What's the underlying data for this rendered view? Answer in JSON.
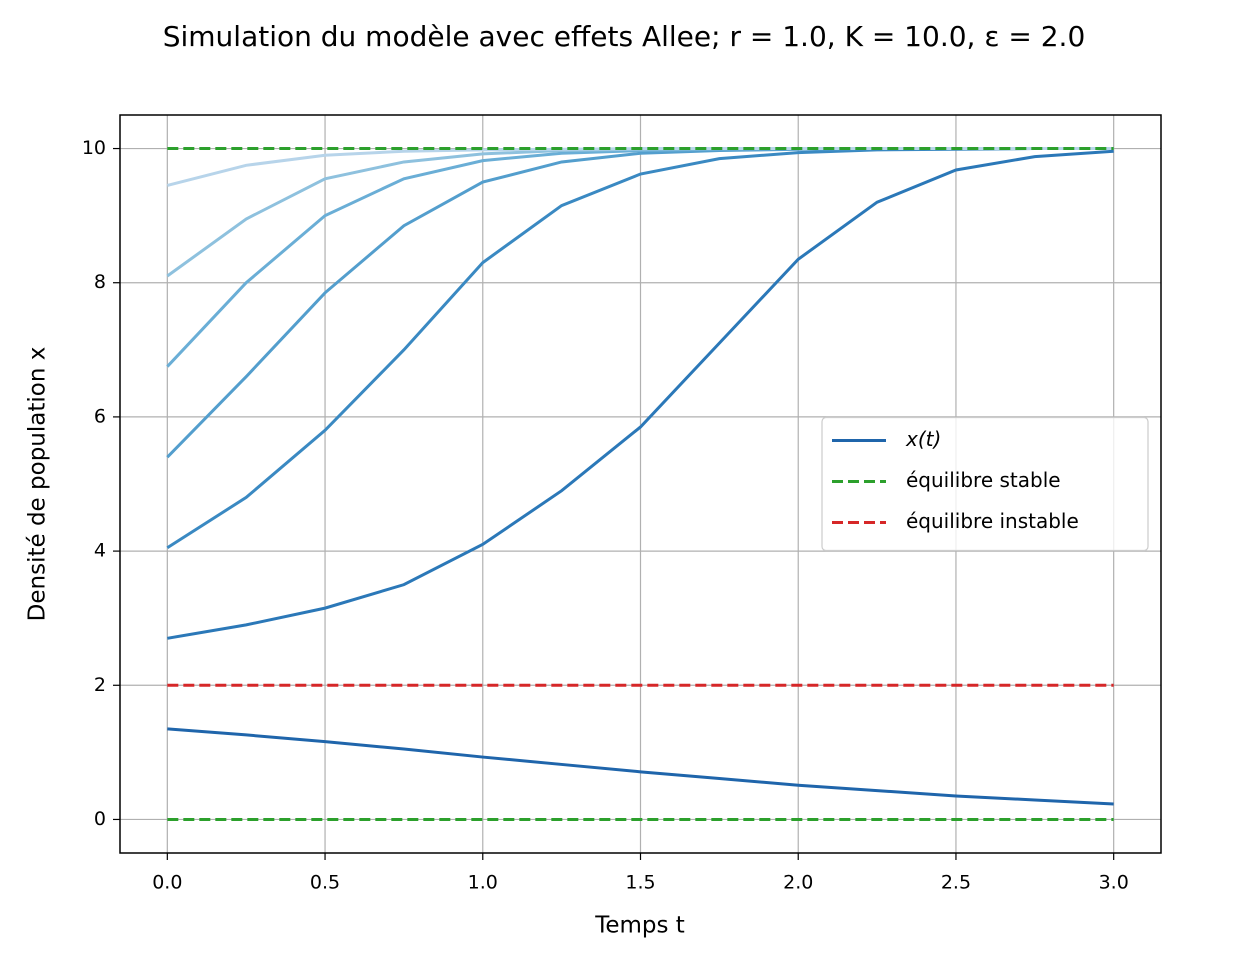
{
  "chart_data": {
    "type": "line",
    "title": "Simulation du modèle avec effets Allee; r = 1.0, K = 10.0, ε = 2.0",
    "xlabel": "Temps t",
    "ylabel": "Densité de population x",
    "x": [
      0,
      0.25,
      0.5,
      0.75,
      1.0,
      1.25,
      1.5,
      1.75,
      2.0,
      2.25,
      2.5,
      2.75,
      3.0
    ],
    "series": [
      {
        "name": "x(t)",
        "color": "#1f65ab",
        "values": [
          1.35,
          1.26,
          1.16,
          1.05,
          0.93,
          0.82,
          0.71,
          0.61,
          0.51,
          0.43,
          0.35,
          0.29,
          0.23
        ]
      },
      {
        "color": "#2b78b8",
        "values": [
          2.7,
          2.9,
          3.15,
          3.5,
          4.1,
          4.9,
          5.85,
          7.1,
          8.35,
          9.2,
          9.68,
          9.88,
          9.96
        ]
      },
      {
        "color": "#3a89c2",
        "values": [
          4.05,
          4.8,
          5.8,
          7.0,
          8.3,
          9.15,
          9.62,
          9.85,
          9.94,
          9.98,
          9.99,
          10,
          10
        ]
      },
      {
        "color": "#539ecd",
        "values": [
          5.4,
          6.6,
          7.85,
          8.85,
          9.5,
          9.8,
          9.93,
          9.97,
          9.99,
          10,
          10,
          10,
          10
        ]
      },
      {
        "color": "#6aaed6",
        "values": [
          6.75,
          8.0,
          9.0,
          9.55,
          9.82,
          9.93,
          9.97,
          9.99,
          10,
          10,
          10,
          10,
          10
        ]
      },
      {
        "color": "#8ec1de",
        "values": [
          8.1,
          8.95,
          9.55,
          9.8,
          9.92,
          9.97,
          9.99,
          10,
          10,
          10,
          10,
          10,
          10
        ]
      },
      {
        "color": "#b7d4ea",
        "values": [
          9.45,
          9.75,
          9.9,
          9.96,
          9.98,
          9.99,
          10,
          10,
          10,
          10,
          10,
          10,
          10
        ]
      }
    ],
    "hlines": [
      {
        "name": "équilibre stable",
        "color": "#2ca02c",
        "y": [
          0,
          10
        ]
      },
      {
        "name": "équilibre instable",
        "color": "#d62728",
        "y": [
          2
        ]
      }
    ],
    "xlim": [
      -0.15,
      3.15
    ],
    "ylim": [
      -0.5,
      10.5
    ],
    "xticks": [
      {
        "value": 0,
        "label": "0.0"
      },
      0.5,
      {
        "value": 1,
        "label": "1.0"
      },
      1.5,
      {
        "value": 2,
        "label": "2.0"
      },
      2.5,
      {
        "value": 3,
        "label": "3.0"
      }
    ],
    "yticks": [
      0,
      2,
      4,
      6,
      8,
      10
    ],
    "grid": true,
    "legend": "center right"
  }
}
